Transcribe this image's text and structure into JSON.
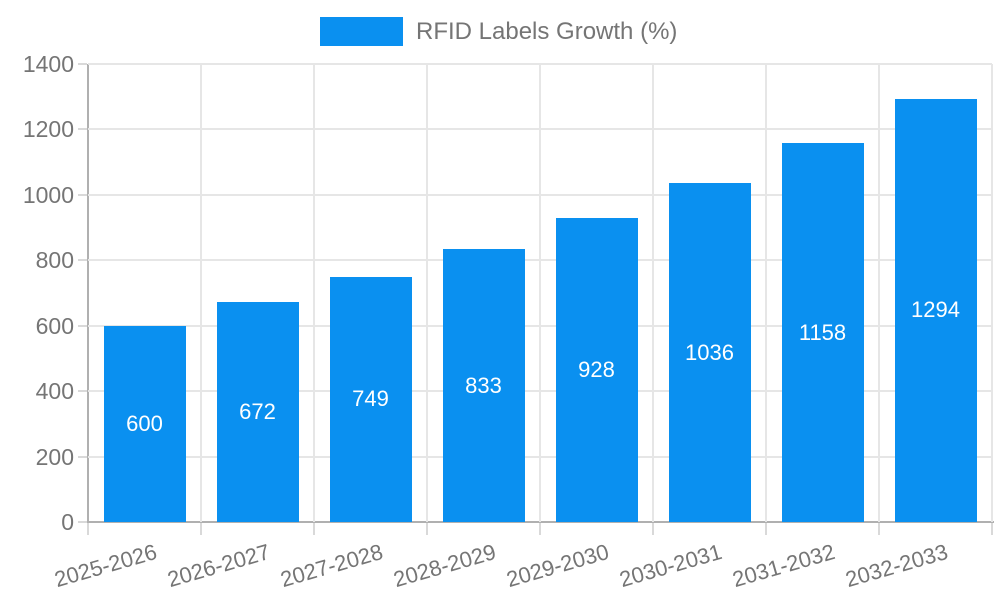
{
  "chart_data": {
    "type": "bar",
    "legend": "RFID Labels Growth (%)",
    "categories": [
      "2025-2026",
      "2026-2027",
      "2027-2028",
      "2028-2029",
      "2029-2030",
      "2030-2031",
      "2031-2032",
      "2032-2033"
    ],
    "values": [
      600,
      672,
      749,
      833,
      928,
      1036,
      1158,
      1294
    ],
    "title": "",
    "xlabel": "",
    "ylabel": "",
    "ylim": [
      0,
      1400
    ],
    "yticks": [
      0,
      200,
      400,
      600,
      800,
      1000,
      1200,
      1400
    ],
    "grid": true,
    "legend_position": "top-center",
    "value_labels": "inside-center"
  },
  "colors": {
    "bar": "#0a90f0",
    "text": "#757575",
    "grid": "#e6e6e6",
    "axis": "#b0b0b0",
    "tick": "#d9d9d9",
    "valuetext": "#ffffff",
    "bg": "#ffffff"
  }
}
